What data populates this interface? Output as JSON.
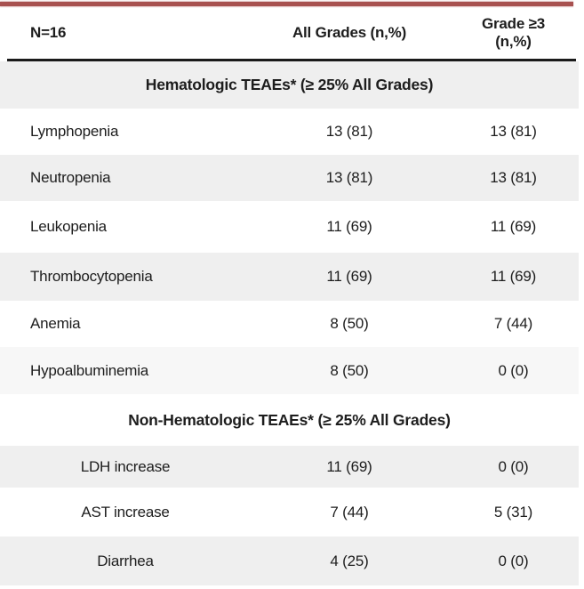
{
  "table": {
    "header": {
      "col1": "N=16",
      "col2": "All Grades (n,%)",
      "col3_line1": "Grade ≥3",
      "col3_line2": "(n,%)"
    },
    "sections": [
      {
        "title": "Hematologic TEAEs* (≥ 25% All Grades)",
        "label_alignment": "left",
        "rows": [
          {
            "label": "Lymphopenia",
            "all_grades": "13 (81)",
            "grade3": "13 (81)"
          },
          {
            "label": "Neutropenia",
            "all_grades": "13 (81)",
            "grade3": "13 (81)"
          },
          {
            "label": "Leukopenia",
            "all_grades": "11 (69)",
            "grade3": "11 (69)"
          },
          {
            "label": "Thrombocytopenia",
            "all_grades": "11 (69)",
            "grade3": "11 (69)"
          },
          {
            "label": "Anemia",
            "all_grades": "8 (50)",
            "grade3": "7 (44)"
          },
          {
            "label": "Hypoalbuminemia",
            "all_grades": "8 (50)",
            "grade3": "0 (0)"
          }
        ]
      },
      {
        "title": "Non-Hematologic TEAEs* (≥ 25% All Grades)",
        "label_alignment": "center",
        "rows": [
          {
            "label": "LDH increase",
            "all_grades": "11 (69)",
            "grade3": "0 (0)"
          },
          {
            "label": "AST increase",
            "all_grades": "7 (44)",
            "grade3": "5 (31)"
          },
          {
            "label": "Diarrhea",
            "all_grades": "4 (25)",
            "grade3": "0 (0)"
          }
        ]
      }
    ]
  },
  "colors": {
    "accent_line": "#a85150",
    "header_rule": "#1a1a1a",
    "band_gray": "#efefef",
    "band_light": "#f7f7f7",
    "text": "#1d1d1d"
  }
}
